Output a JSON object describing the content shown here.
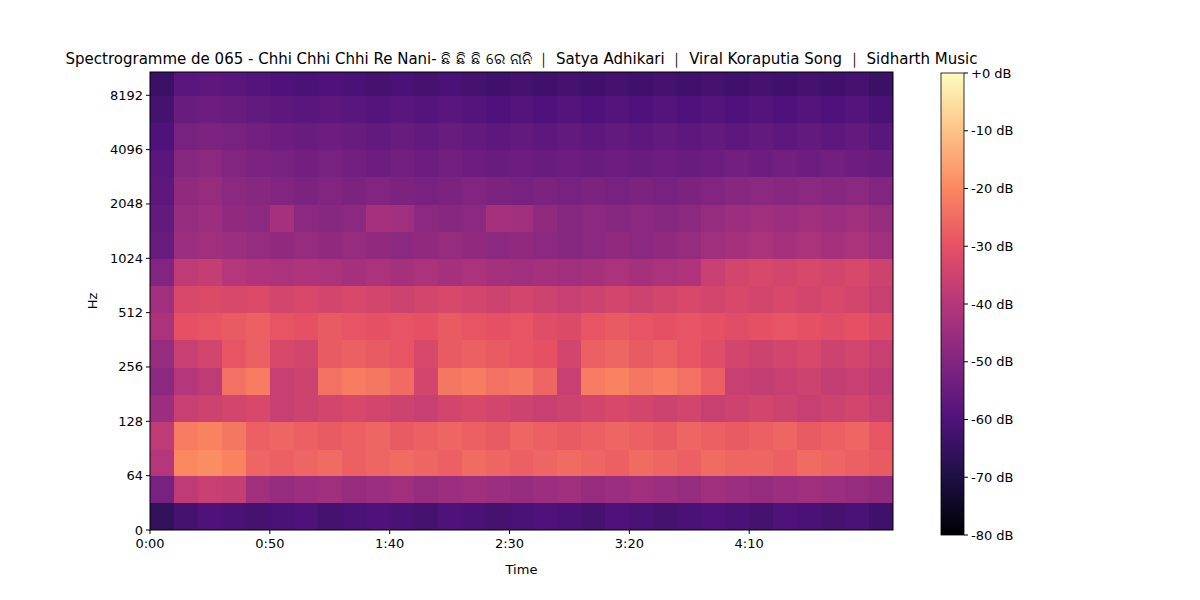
{
  "chart_data": {
    "type": "heatmap",
    "title": "Spectrogramme de 065 - Chhi Chhi Chhi Re Nani- ଛି ଛି ଛି ରେ ନାନି ｜ Satya Adhikari ｜ Viral Koraputia Song ｜ Sidharth Music",
    "x_label": "Time",
    "y_label": "Hz",
    "log": "y",
    "xlim": [
      0,
      310
    ],
    "xticks": [
      {
        "value": 0,
        "label": "0:00"
      },
      {
        "value": 50,
        "label": "0:50"
      },
      {
        "value": 100,
        "label": "1:40"
      },
      {
        "value": 150,
        "label": "2:30"
      },
      {
        "value": 200,
        "label": "3:20"
      },
      {
        "value": 250,
        "label": "4:10"
      }
    ],
    "ylim": [
      0,
      11025
    ],
    "yticks": [
      0,
      64,
      128,
      256,
      512,
      1024,
      2048,
      4096,
      8192
    ],
    "x_bins": [
      0,
      10,
      20,
      30,
      40,
      50,
      60,
      70,
      80,
      90,
      100,
      110,
      120,
      130,
      140,
      150,
      160,
      170,
      180,
      190,
      200,
      210,
      220,
      230,
      240,
      250,
      260,
      270,
      280,
      290,
      300,
      310
    ],
    "y_bins": [
      0,
      32,
      64,
      90,
      128,
      181,
      256,
      362,
      512,
      724,
      1024,
      1448,
      2048,
      2896,
      4096,
      5793,
      8192,
      11025
    ],
    "cells": [
      [
        -66,
        -62,
        -60,
        -61,
        -62,
        -61,
        -60,
        -62,
        -61,
        -60,
        -61,
        -62,
        -60,
        -61,
        -62,
        -61,
        -60,
        -61,
        -62,
        -60,
        -61,
        -62,
        -61,
        -60,
        -61,
        -62,
        -60,
        -61,
        -62,
        -61,
        -63
      ],
      [
        -52,
        -38,
        -36,
        -37,
        -44,
        -46,
        -45,
        -44,
        -46,
        -45,
        -44,
        -46,
        -45,
        -44,
        -45,
        -46,
        -45,
        -44,
        -46,
        -45,
        -44,
        -45,
        -46,
        -44,
        -45,
        -46,
        -45,
        -44,
        -45,
        -46,
        -47
      ],
      [
        -40,
        -20,
        -19,
        -21,
        -26,
        -27,
        -26,
        -25,
        -27,
        -26,
        -25,
        -26,
        -27,
        -25,
        -26,
        -27,
        -26,
        -25,
        -26,
        -27,
        -25,
        -26,
        -27,
        -25,
        -26,
        -26,
        -27,
        -25,
        -26,
        -27,
        -28
      ],
      [
        -38,
        -22,
        -21,
        -23,
        -27,
        -26,
        -27,
        -28,
        -27,
        -26,
        -28,
        -27,
        -26,
        -27,
        -28,
        -26,
        -27,
        -28,
        -27,
        -26,
        -27,
        -28,
        -26,
        -27,
        -28,
        -27,
        -26,
        -28,
        -27,
        -26,
        -29
      ],
      [
        -45,
        -36,
        -35,
        -34,
        -33,
        -36,
        -35,
        -34,
        -33,
        -34,
        -35,
        -36,
        -34,
        -33,
        -34,
        -35,
        -36,
        -35,
        -34,
        -33,
        -34,
        -35,
        -34,
        -36,
        -35,
        -34,
        -35,
        -36,
        -35,
        -34,
        -36
      ],
      [
        -48,
        -40,
        -38,
        -24,
        -22,
        -36,
        -35,
        -24,
        -22,
        -23,
        -25,
        -34,
        -23,
        -22,
        -24,
        -23,
        -26,
        -36,
        -22,
        -21,
        -23,
        -22,
        -24,
        -27,
        -36,
        -37,
        -36,
        -35,
        -37,
        -36,
        -38
      ],
      [
        -46,
        -36,
        -34,
        -29,
        -27,
        -33,
        -34,
        -28,
        -27,
        -28,
        -29,
        -33,
        -28,
        -27,
        -28,
        -29,
        -30,
        -34,
        -27,
        -26,
        -28,
        -27,
        -29,
        -31,
        -34,
        -35,
        -34,
        -33,
        -35,
        -34,
        -36
      ],
      [
        -42,
        -30,
        -29,
        -28,
        -27,
        -29,
        -30,
        -28,
        -29,
        -30,
        -29,
        -30,
        -28,
        -29,
        -30,
        -29,
        -31,
        -32,
        -29,
        -28,
        -29,
        -30,
        -29,
        -30,
        -31,
        -30,
        -29,
        -30,
        -31,
        -30,
        -32
      ],
      [
        -44,
        -33,
        -32,
        -33,
        -32,
        -34,
        -33,
        -34,
        -33,
        -34,
        -35,
        -34,
        -33,
        -34,
        -35,
        -34,
        -35,
        -36,
        -35,
        -34,
        -35,
        -34,
        -33,
        -34,
        -33,
        -34,
        -33,
        -34,
        -33,
        -34,
        -36
      ],
      [
        -50,
        -38,
        -37,
        -40,
        -41,
        -42,
        -41,
        -42,
        -43,
        -42,
        -43,
        -42,
        -43,
        -42,
        -43,
        -44,
        -43,
        -44,
        -43,
        -42,
        -43,
        -42,
        -41,
        -36,
        -34,
        -33,
        -34,
        -33,
        -34,
        -33,
        -35
      ],
      [
        -55,
        -45,
        -44,
        -45,
        -46,
        -47,
        -46,
        -47,
        -46,
        -47,
        -48,
        -47,
        -46,
        -47,
        -48,
        -47,
        -48,
        -49,
        -48,
        -47,
        -48,
        -47,
        -46,
        -44,
        -43,
        -42,
        -43,
        -42,
        -43,
        -42,
        -44
      ],
      [
        -56,
        -46,
        -45,
        -47,
        -48,
        -43,
        -48,
        -49,
        -48,
        -43,
        -44,
        -48,
        -49,
        -48,
        -43,
        -44,
        -47,
        -49,
        -48,
        -49,
        -48,
        -49,
        -48,
        -46,
        -45,
        -44,
        -45,
        -44,
        -45,
        -44,
        -46
      ],
      [
        -57,
        -47,
        -46,
        -48,
        -49,
        -50,
        -51,
        -50,
        -51,
        -50,
        -51,
        -52,
        -51,
        -50,
        -51,
        -52,
        -51,
        -52,
        -51,
        -52,
        -51,
        -52,
        -51,
        -50,
        -49,
        -48,
        -49,
        -48,
        -49,
        -48,
        -50
      ],
      [
        -58,
        -49,
        -48,
        -50,
        -51,
        -52,
        -53,
        -52,
        -53,
        -54,
        -53,
        -54,
        -53,
        -54,
        -55,
        -54,
        -55,
        -54,
        -55,
        -54,
        -55,
        -54,
        -55,
        -54,
        -53,
        -54,
        -53,
        -54,
        -53,
        -54,
        -55
      ],
      [
        -60,
        -52,
        -51,
        -52,
        -53,
        -54,
        -55,
        -54,
        -55,
        -56,
        -55,
        -56,
        -55,
        -56,
        -57,
        -56,
        -57,
        -56,
        -57,
        -56,
        -57,
        -56,
        -57,
        -56,
        -57,
        -56,
        -57,
        -56,
        -57,
        -56,
        -58
      ],
      [
        -62,
        -55,
        -54,
        -55,
        -56,
        -57,
        -58,
        -57,
        -58,
        -59,
        -58,
        -59,
        -58,
        -59,
        -60,
        -59,
        -60,
        -59,
        -60,
        -59,
        -60,
        -59,
        -60,
        -59,
        -60,
        -59,
        -60,
        -59,
        -60,
        -59,
        -61
      ],
      [
        -64,
        -58,
        -57,
        -58,
        -59,
        -60,
        -61,
        -60,
        -61,
        -62,
        -61,
        -62,
        -61,
        -62,
        -63,
        -62,
        -63,
        -62,
        -63,
        -62,
        -63,
        -62,
        -63,
        -62,
        -63,
        -62,
        -63,
        -62,
        -63,
        -62,
        -64
      ]
    ],
    "colorbar_range": [
      -80,
      0
    ],
    "colorbar_ticks": [
      {
        "value": 0,
        "label": "+0 dB"
      },
      {
        "value": -10,
        "label": "-10 dB"
      },
      {
        "value": -20,
        "label": "-20 dB"
      },
      {
        "value": -30,
        "label": "-30 dB"
      },
      {
        "value": -40,
        "label": "-40 dB"
      },
      {
        "value": -50,
        "label": "-50 dB"
      },
      {
        "value": -60,
        "label": "-60 dB"
      },
      {
        "value": -70,
        "label": "-70 dB"
      },
      {
        "value": -80,
        "label": "-80 dB"
      }
    ]
  }
}
